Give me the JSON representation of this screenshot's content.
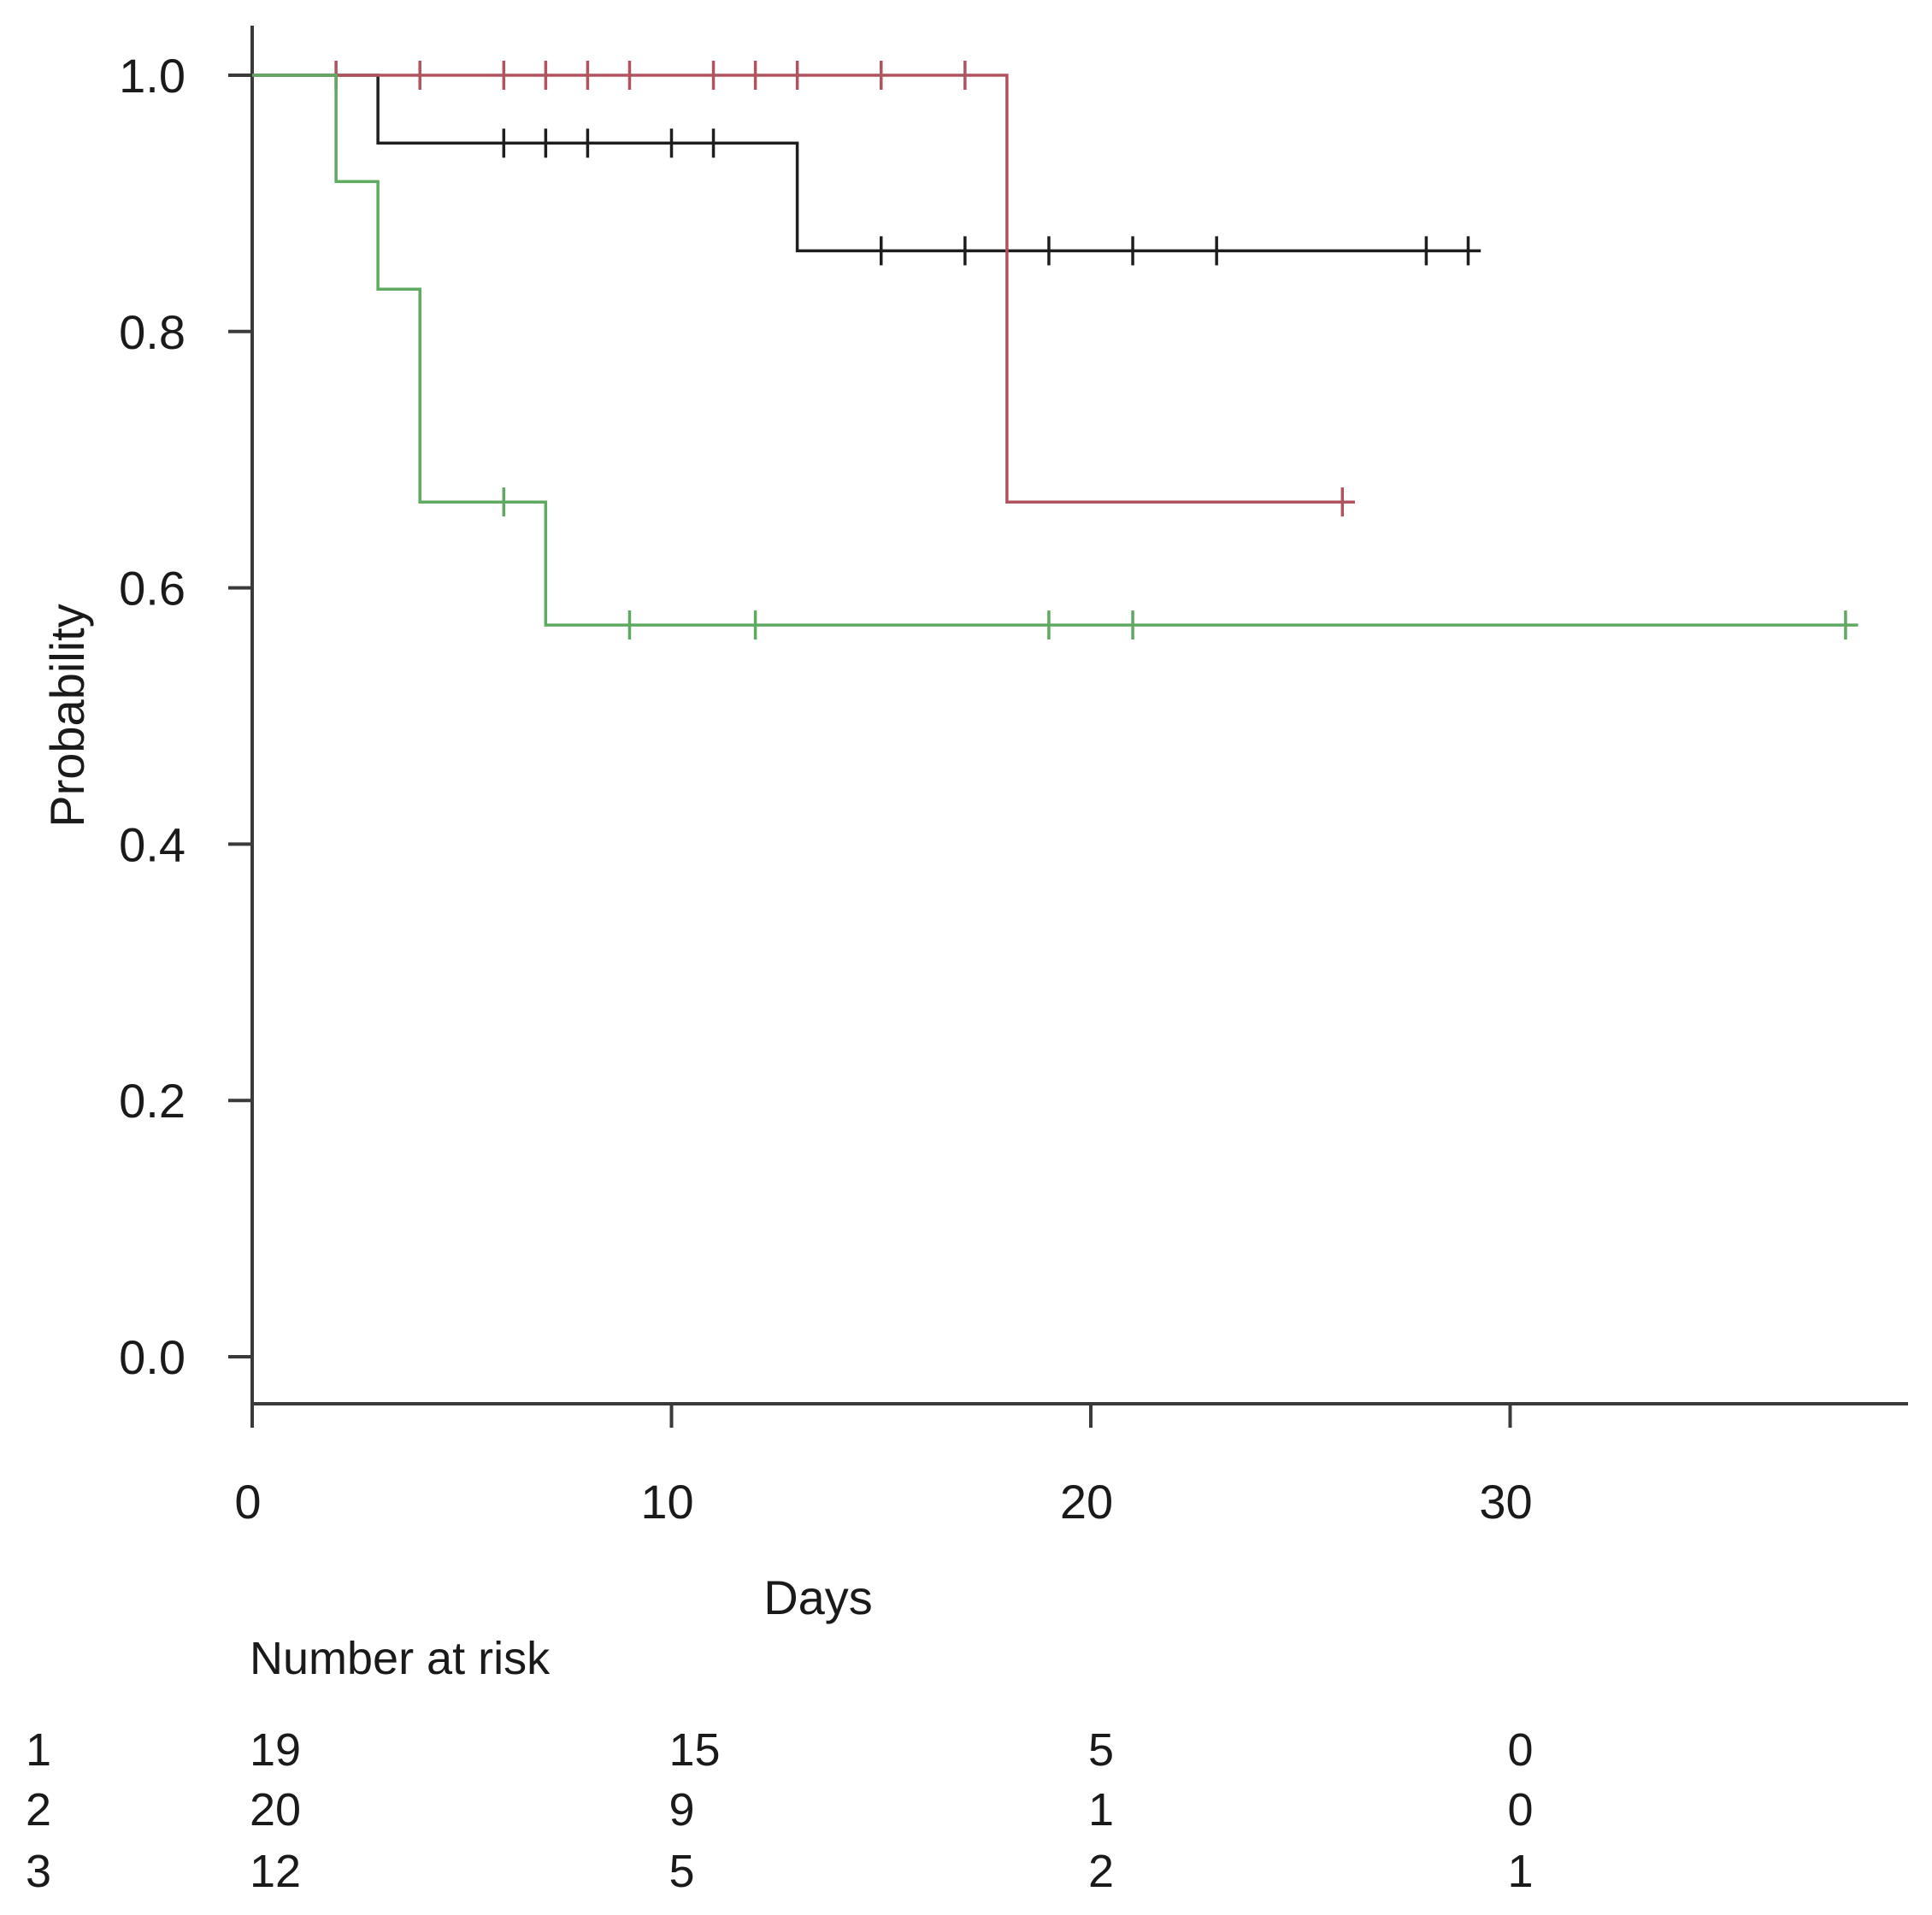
{
  "chart_data": {
    "type": "line",
    "subtype": "kaplan-meier",
    "title": "",
    "xlabel": "Days",
    "ylabel": "Probability",
    "xlim": [
      0,
      39
    ],
    "ylim": [
      0.0,
      1.0
    ],
    "x_ticks": [
      0,
      10,
      20,
      30
    ],
    "x_tick_labels": [
      "0",
      "10",
      "20",
      "30"
    ],
    "y_ticks": [
      0.0,
      0.2,
      0.4,
      0.6,
      0.8,
      1.0
    ],
    "y_tick_labels": [
      "0.0",
      "0.2",
      "0.4",
      "0.6",
      "0.8",
      "1.0"
    ],
    "grid": false,
    "series": [
      {
        "name": "1",
        "color": "#1e1e1e",
        "steps": [
          [
            0,
            1.0
          ],
          [
            3,
            0.947
          ],
          [
            13,
            0.863
          ]
        ],
        "end_x": 29.3,
        "censor_times": [
          6,
          7,
          8,
          10,
          11,
          15,
          17,
          19,
          21,
          23,
          28,
          29
        ]
      },
      {
        "name": "2",
        "color": "#b2525f",
        "steps": [
          [
            0,
            1.0
          ],
          [
            18,
            0.667
          ]
        ],
        "end_x": 26.3,
        "censor_times": [
          2,
          4,
          6,
          7,
          8,
          9,
          11,
          12,
          13,
          15,
          17,
          26
        ]
      },
      {
        "name": "3",
        "color": "#5faa61",
        "steps": [
          [
            0,
            1.0
          ],
          [
            2,
            0.917
          ],
          [
            3,
            0.833
          ],
          [
            4,
            0.667
          ],
          [
            7,
            0.571
          ]
        ],
        "end_x": 38.3,
        "censor_times": [
          6,
          9,
          12,
          19,
          21,
          38
        ]
      }
    ],
    "risk_table": {
      "title": "Number at risk",
      "times": [
        0,
        10,
        20,
        30
      ],
      "rows": [
        {
          "group": "1",
          "values": [
            "19",
            "15",
            "5",
            "0"
          ]
        },
        {
          "group": "2",
          "values": [
            "20",
            "9",
            "1",
            "0"
          ]
        },
        {
          "group": "3",
          "values": [
            "12",
            "5",
            "2",
            "1"
          ]
        }
      ]
    }
  }
}
